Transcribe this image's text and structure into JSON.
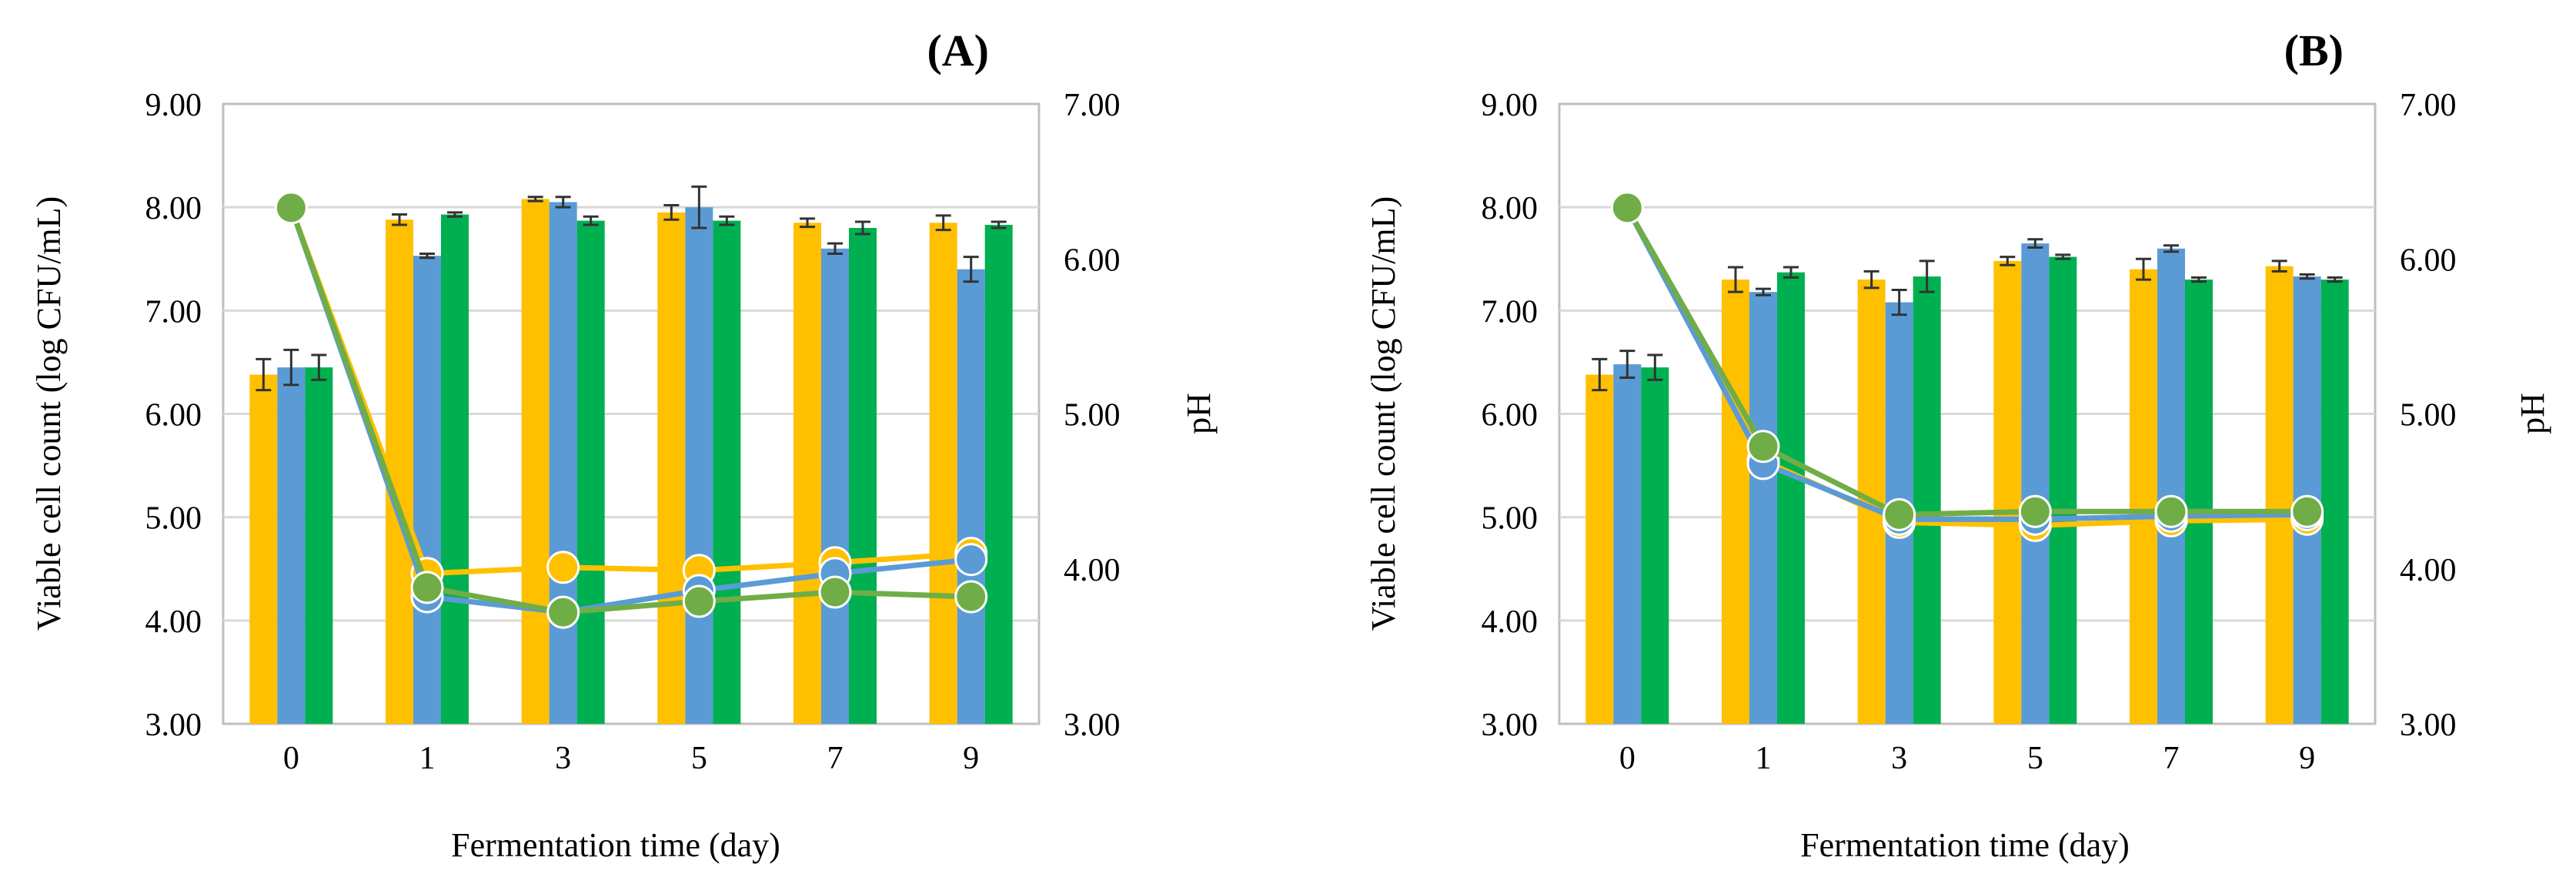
{
  "colors": {
    "yellow": "#FFC000",
    "blue": "#5B9BD5",
    "green": "#00B050",
    "green_ph": "#70AD47",
    "grid": "#d9d9d9",
    "error_bar": "#333333"
  },
  "chart_data": [
    {
      "type": "bar",
      "panel_label": "(A)",
      "categories": [
        "0",
        "1",
        "3",
        "5",
        "7",
        "9"
      ],
      "xlabel": "Fermentation time (day)",
      "ylabel": "Viable cell count (log CFU/mL)",
      "y2label": "pH",
      "ylim": [
        3,
        9
      ],
      "y2lim": [
        3,
        7
      ],
      "yticks": [
        "3.00",
        "4.00",
        "5.00",
        "6.00",
        "7.00",
        "8.00",
        "9.00"
      ],
      "y2ticks": [
        "3.00",
        "4.00",
        "5.00",
        "6.00",
        "7.00"
      ],
      "grid": true,
      "series": [
        {
          "name": "viable-yellow",
          "kind": "bar",
          "color": "yellow",
          "values": [
            6.38,
            7.88,
            8.08,
            7.95,
            7.85,
            7.85
          ],
          "errors": [
            0.15,
            0.05,
            0.02,
            0.07,
            0.04,
            0.07
          ]
        },
        {
          "name": "viable-blue",
          "kind": "bar",
          "color": "blue",
          "values": [
            6.45,
            7.53,
            8.05,
            8.0,
            7.6,
            7.4
          ],
          "errors": [
            0.17,
            0.02,
            0.05,
            0.2,
            0.05,
            0.12
          ]
        },
        {
          "name": "viable-green",
          "kind": "bar",
          "color": "green",
          "values": [
            6.45,
            7.93,
            7.87,
            7.87,
            7.8,
            7.83
          ],
          "errors": [
            0.12,
            0.02,
            0.04,
            0.04,
            0.06,
            0.03
          ]
        },
        {
          "name": "pH-yellow",
          "kind": "line",
          "color": "yellow",
          "values": [
            6.33,
            3.97,
            4.01,
            3.99,
            4.04,
            4.1
          ]
        },
        {
          "name": "pH-blue",
          "kind": "line",
          "color": "blue",
          "values": [
            6.33,
            3.82,
            3.72,
            3.86,
            3.97,
            4.06
          ]
        },
        {
          "name": "pH-green",
          "kind": "line",
          "color": "green_ph",
          "values": [
            6.33,
            3.88,
            3.72,
            3.79,
            3.85,
            3.82
          ]
        }
      ]
    },
    {
      "type": "bar",
      "panel_label": "(B)",
      "categories": [
        "0",
        "1",
        "3",
        "5",
        "7",
        "9"
      ],
      "xlabel": "Fermentation time (day)",
      "ylabel": "Viable cell count (log CFU/mL)",
      "y2label": "pH",
      "ylim": [
        3,
        9
      ],
      "y2lim": [
        3,
        7
      ],
      "yticks": [
        "3.00",
        "4.00",
        "5.00",
        "6.00",
        "7.00",
        "8.00",
        "9.00"
      ],
      "y2ticks": [
        "3.00",
        "4.00",
        "5.00",
        "6.00",
        "7.00"
      ],
      "grid": true,
      "series": [
        {
          "name": "viable-yellow",
          "kind": "bar",
          "color": "yellow",
          "values": [
            6.38,
            7.3,
            7.3,
            7.48,
            7.4,
            7.43
          ],
          "errors": [
            0.15,
            0.12,
            0.08,
            0.04,
            0.1,
            0.05
          ]
        },
        {
          "name": "viable-blue",
          "kind": "bar",
          "color": "blue",
          "values": [
            6.48,
            7.18,
            7.08,
            7.65,
            7.6,
            7.33
          ],
          "errors": [
            0.13,
            0.03,
            0.12,
            0.04,
            0.03,
            0.02
          ]
        },
        {
          "name": "viable-green",
          "kind": "bar",
          "color": "green",
          "values": [
            6.45,
            7.37,
            7.33,
            7.52,
            7.3,
            7.3
          ],
          "errors": [
            0.12,
            0.05,
            0.15,
            0.02,
            0.02,
            0.02
          ]
        },
        {
          "name": "pH-yellow",
          "kind": "line",
          "color": "yellow",
          "values": [
            6.33,
            4.7,
            4.3,
            4.28,
            4.31,
            4.32
          ]
        },
        {
          "name": "pH-blue",
          "kind": "line",
          "color": "blue",
          "values": [
            6.33,
            4.68,
            4.32,
            4.32,
            4.34,
            4.35
          ]
        },
        {
          "name": "pH-green",
          "kind": "line",
          "color": "green_ph",
          "values": [
            6.33,
            4.79,
            4.35,
            4.37,
            4.37,
            4.37
          ]
        }
      ]
    }
  ]
}
